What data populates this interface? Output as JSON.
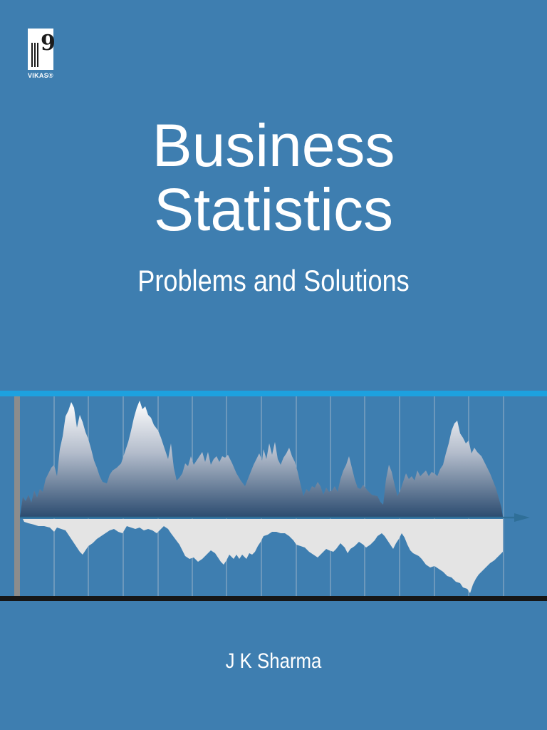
{
  "publisher": {
    "name": "VIKAS®"
  },
  "cover": {
    "title_line1": "Business",
    "title_line2": "Statistics",
    "subtitle": "Problems and Solutions",
    "author": "J K Sharma"
  },
  "colors": {
    "background": "#3e7eb0",
    "accent_rule": "#1da1df",
    "bottom_rule": "#161616",
    "lower_fill": "#e4e4e4"
  }
}
